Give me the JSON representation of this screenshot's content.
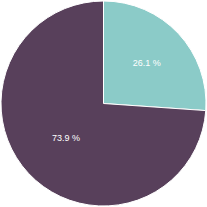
{
  "chart_data": {
    "type": "pie",
    "values": [
      26.1,
      73.9
    ],
    "value_labels": [
      "26.1 %",
      "73.9 %"
    ],
    "colors": [
      "#8bcbc8",
      "#58405b"
    ],
    "data_labels": true
  }
}
